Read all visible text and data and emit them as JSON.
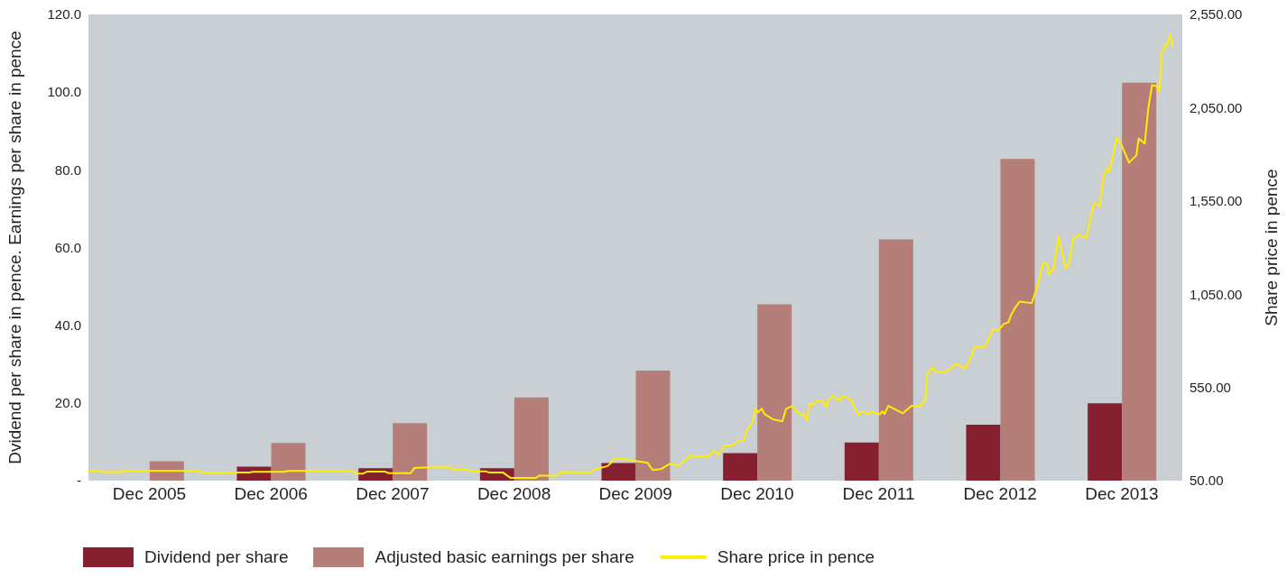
{
  "chart_data": {
    "type": "bar",
    "x": [
      "2005-12-03",
      "2006-12-03",
      "2007-12-03",
      "2008-12-03",
      "2009-12-03",
      "2010-12-03",
      "2011-12-03",
      "2012-12-03",
      "2013-12-03"
    ],
    "xlim": [
      "2005-06-03",
      "2014-06-03"
    ],
    "xticks": [
      {
        "value": "2005-12-03",
        "label": "Dec 2005"
      },
      {
        "value": "2006-12-03",
        "label": "Dec 2006"
      },
      {
        "value": "2007-12-03",
        "label": "Dec 2007"
      },
      {
        "value": "2008-12-03",
        "label": "Dec 2008"
      },
      {
        "value": "2009-12-03",
        "label": "Dec 2009"
      },
      {
        "value": "2010-12-03",
        "label": "Dec 2010"
      },
      {
        "value": "2011-12-03",
        "label": "Dec 2011"
      },
      {
        "value": "2012-12-03",
        "label": "Dec 2012"
      },
      {
        "value": "2013-12-03",
        "label": "Dec 2013"
      }
    ],
    "ylabel": "Dvidend per share in pence. Earnings per share in pence",
    "y2label": "Share price in pence",
    "ylim": [
      0,
      120
    ],
    "yticks": [
      {
        "value": 0,
        "label": "-"
      },
      {
        "value": 20,
        "label": "20.0"
      },
      {
        "value": 40,
        "label": "40.0"
      },
      {
        "value": 60,
        "label": "60.0"
      },
      {
        "value": 80,
        "label": "80.0"
      },
      {
        "value": 100,
        "label": "100.0"
      },
      {
        "value": 120,
        "label": "120.0"
      }
    ],
    "y2lim": [
      50,
      2550
    ],
    "y2ticks": [
      {
        "value": 50,
        "label": "50.00"
      },
      {
        "value": 550,
        "label": "550.00"
      },
      {
        "value": 1050,
        "label": "1,050.00"
      },
      {
        "value": 1550,
        "label": "1,550.00"
      },
      {
        "value": 2050,
        "label": "2,050.00"
      },
      {
        "value": 2550,
        "label": "2,550.00"
      }
    ],
    "series": [
      {
        "name": "Dividend per share",
        "color": "#861f30",
        "values": [
          null,
          3.6,
          3.2,
          3.2,
          4.5,
          7.1,
          9.8,
          14.4,
          19.9
        ]
      },
      {
        "name": "Adjusted basic earnings per share",
        "color": "#b57f79",
        "values": [
          5.0,
          9.7,
          14.8,
          21.4,
          28.3,
          45.4,
          62.1,
          82.8,
          102.4
        ]
      },
      {
        "name": "Share price in pence",
        "type": "line",
        "axis": "y2",
        "color": "#ffee00",
        "x": [
          "2005-06-03",
          "2005-07-03",
          "2005-07-17",
          "2005-09-10",
          "2005-09-17",
          "2006-05-01",
          "2006-05-12",
          "2006-09-28",
          "2006-10-09",
          "2007-01-12",
          "2007-01-23",
          "2007-08-04",
          "2007-08-15",
          "2007-09-06",
          "2007-09-17",
          "2007-11-11",
          "2007-11-22",
          "2008-01-27",
          "2008-02-07",
          "2008-04-21",
          "2008-05-23",
          "2008-06-03",
          "2008-07-17",
          "2008-07-28",
          "2008-09-10",
          "2008-09-21",
          "2008-10-31",
          "2008-11-22",
          "2009-02-07",
          "2009-02-17",
          "2009-04-13",
          "2009-04-24",
          "2009-07-17",
          "2009-08-08",
          "2009-09-10",
          "2009-10-05",
          "2009-11-04",
          "2009-12-03",
          "2010-01-08",
          "2010-01-23",
          "2010-02-17",
          "2010-03-15",
          "2010-04-13",
          "2010-05-16",
          "2010-07-06",
          "2010-07-28",
          "2010-08-08",
          "2010-08-30",
          "2010-09-21",
          "2010-10-09",
          "2010-10-24",
          "2010-10-31",
          "2010-11-18",
          "2010-11-29",
          "2010-12-06",
          "2010-12-17",
          "2010-12-25",
          "2011-01-19",
          "2011-02-17",
          "2011-02-28",
          "2011-03-19",
          "2011-04-10",
          "2011-04-21",
          "2011-05-01",
          "2011-05-09",
          "2011-05-20",
          "2011-06-03",
          "2011-06-18",
          "2011-06-29",
          "2011-07-03",
          "2011-07-17",
          "2011-08-08",
          "2011-08-15",
          "2011-09-10",
          "2011-10-02",
          "2011-10-16",
          "2011-10-31",
          "2011-11-11",
          "2011-12-06",
          "2011-12-14",
          "2011-12-21",
          "2012-01-01",
          "2012-02-14",
          "2012-03-11",
          "2012-04-06",
          "2012-04-21",
          "2012-04-28",
          "2012-05-12",
          "2012-05-23",
          "2012-06-22",
          "2012-07-06",
          "2012-07-24",
          "2012-08-19",
          "2012-09-03",
          "2012-09-17",
          "2012-09-28",
          "2012-10-20",
          "2012-11-11",
          "2012-11-29",
          "2012-12-14",
          "2012-12-28",
          "2013-01-05",
          "2013-01-16",
          "2013-01-30",
          "2013-03-08",
          "2013-03-26",
          "2013-04-10",
          "2013-04-21",
          "2013-04-28",
          "2013-05-09",
          "2013-05-12",
          "2013-05-27",
          "2013-06-18",
          "2013-06-29",
          "2013-07-10",
          "2013-07-28",
          "2013-08-19",
          "2013-09-10",
          "2013-09-28",
          "2013-10-09",
          "2013-10-20",
          "2013-10-27",
          "2013-11-18",
          "2013-12-03",
          "2013-12-25",
          "2014-01-16",
          "2014-01-23",
          "2014-02-10",
          "2014-02-21",
          "2014-03-04",
          "2014-03-19",
          "2014-03-26",
          "2014-04-02",
          "2014-04-13",
          "2014-04-17",
          "2014-04-28",
          "2014-05-05"
        ],
        "values": [
          103,
          103,
          96,
          96,
          102,
          102,
          93,
          93,
          97,
          97,
          102,
          102,
          88,
          88,
          98,
          98,
          90,
          90,
          118,
          124,
          124,
          109,
          109,
          99,
          99,
          93,
          93,
          65,
          65,
          77,
          77,
          96,
          93,
          113,
          128,
          169,
          164,
          155,
          146,
          107,
          112,
          139,
          131,
          183,
          178,
          210,
          189,
          239,
          239,
          265,
          261,
          313,
          360,
          436,
          416,
          436,
          408,
          379,
          368,
          435,
          451,
          405,
          405,
          373,
          463,
          459,
          479,
          476,
          444,
          476,
          503,
          479,
          503,
          487,
          403,
          421,
          408,
          419,
          405,
          421,
          408,
          451,
          411,
          451,
          448,
          479,
          622,
          658,
          633,
          630,
          650,
          677,
          650,
          701,
          769,
          764,
          772,
          859,
          859,
          891,
          899,
          939,
          974,
          1010,
          1002,
          1097,
          1216,
          1216,
          1153,
          1181,
          1176,
          1362,
          1187,
          1219,
          1346,
          1367,
          1351,
          1538,
          1522,
          1684,
          1728,
          1704,
          1889,
          1847,
          1755,
          1794,
          1885,
          1857,
          2047,
          2170,
          2164,
          2132,
          2341,
          2389,
          2378,
          2441,
          2378
        ]
      }
    ],
    "legend": "bottom",
    "grid": false
  }
}
